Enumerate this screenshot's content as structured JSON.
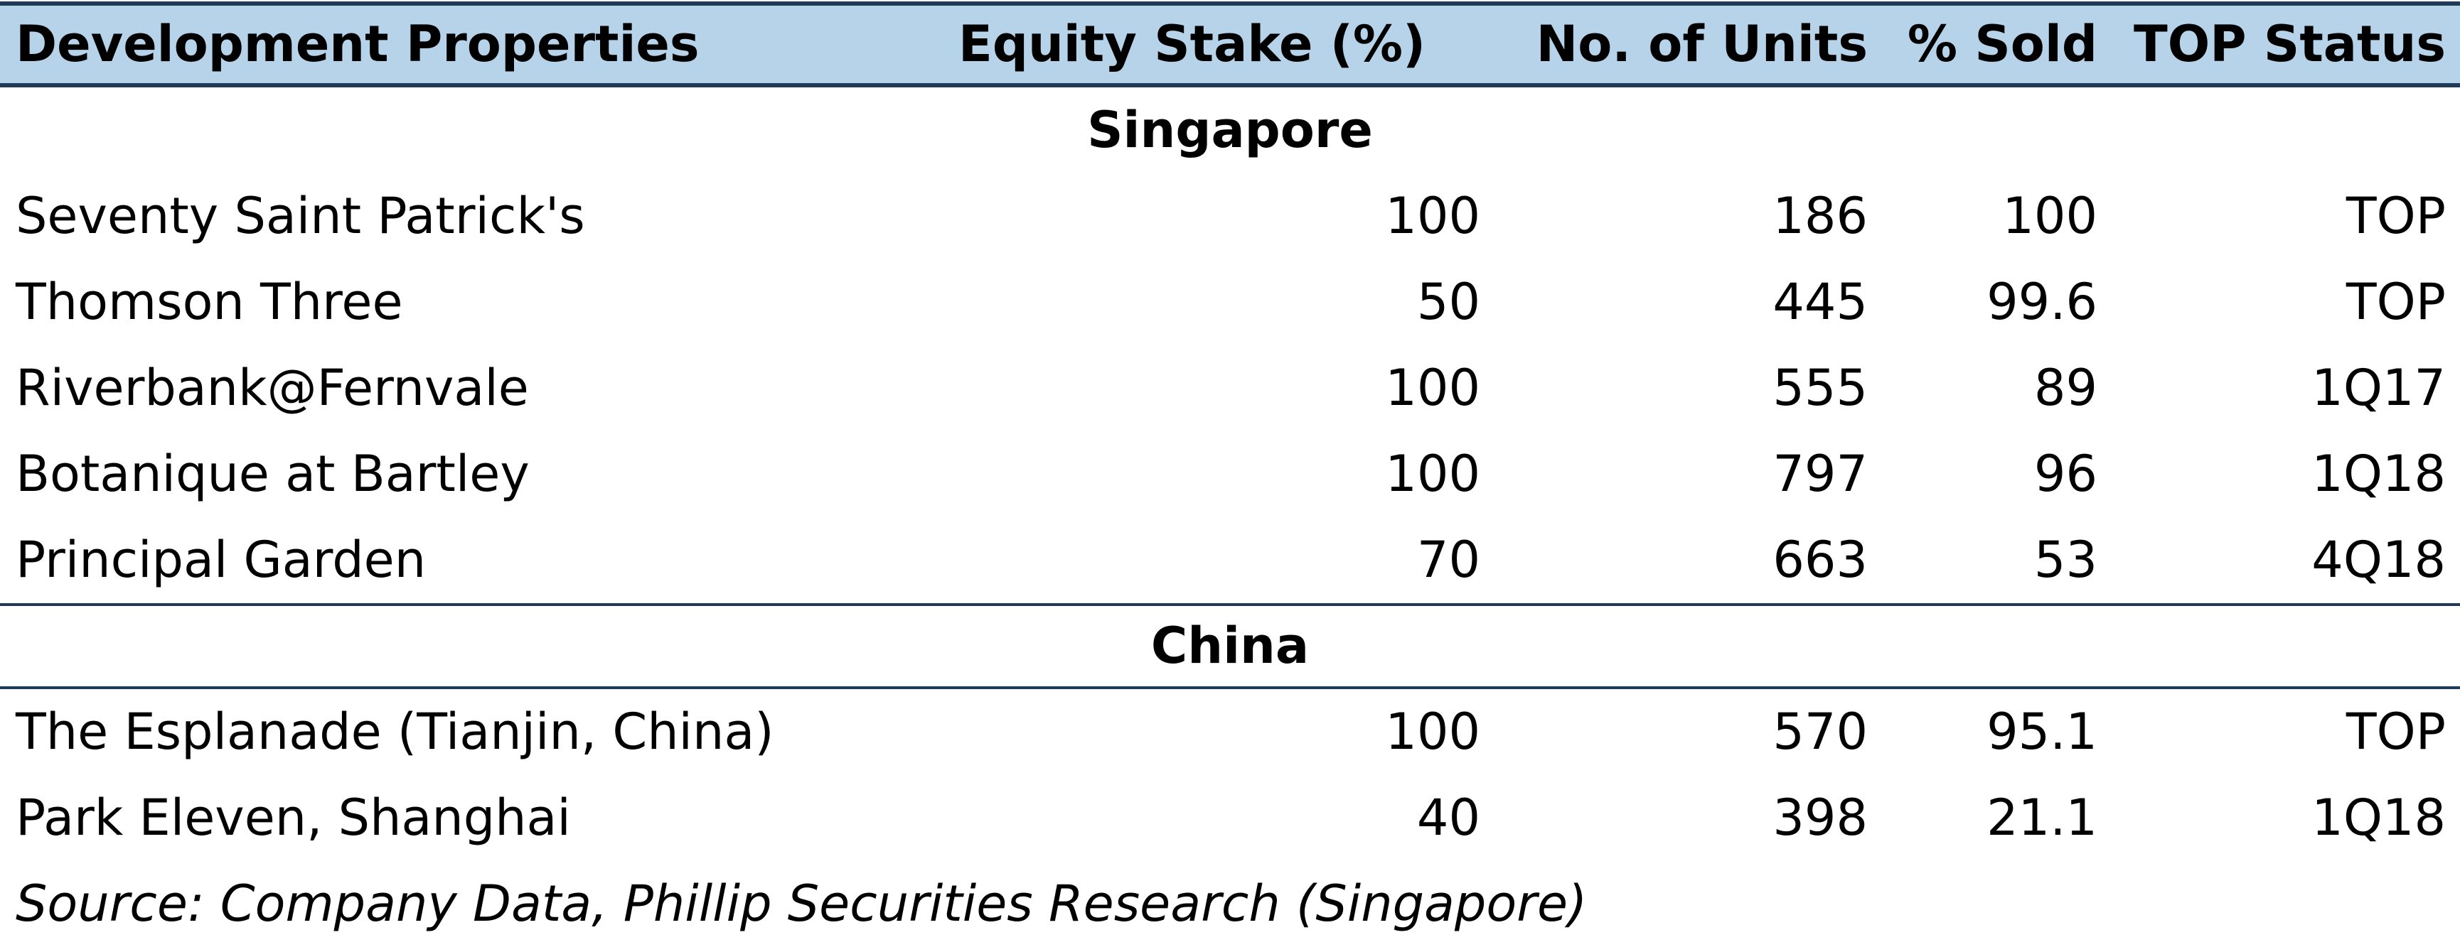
{
  "header": {
    "name": "Development Properties",
    "equity": "Equity Stake (%)",
    "units": "No. of Units",
    "sold": "% Sold",
    "top": "TOP Status"
  },
  "sections": [
    {
      "label": "Singapore",
      "rows": [
        {
          "name": "Seventy Saint Patrick's",
          "equity": "100",
          "units": "186",
          "sold": "100",
          "top": "TOP"
        },
        {
          "name": "Thomson Three",
          "equity": "50",
          "units": "445",
          "sold": "99.6",
          "top": "TOP"
        },
        {
          "name": "Riverbank@Fernvale",
          "equity": "100",
          "units": "555",
          "sold": "89",
          "top": "1Q17"
        },
        {
          "name": "Botanique at Bartley",
          "equity": "100",
          "units": "797",
          "sold": "96",
          "top": "1Q18"
        },
        {
          "name": "Principal Garden",
          "equity": "70",
          "units": "663",
          "sold": "53",
          "top": "4Q18"
        }
      ]
    },
    {
      "label": "China",
      "rows": [
        {
          "name": "The Esplanade (Tianjin, China)",
          "equity": "100",
          "units": "570",
          "sold": "95.1",
          "top": "TOP"
        },
        {
          "name": "Park Eleven, Shanghai",
          "equity": "40",
          "units": "398",
          "sold": "21.1",
          "top": "1Q18"
        }
      ]
    }
  ],
  "source": "Source: Company Data, Phillip Securities Research (Singapore)"
}
